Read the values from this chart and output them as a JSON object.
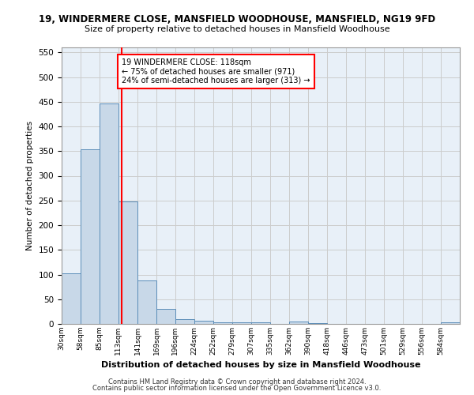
{
  "title1": "19, WINDERMERE CLOSE, MANSFIELD WOODHOUSE, MANSFIELD, NG19 9FD",
  "title2": "Size of property relative to detached houses in Mansfield Woodhouse",
  "xlabel": "Distribution of detached houses by size in Mansfield Woodhouse",
  "ylabel": "Number of detached properties",
  "bin_labels": [
    "30sqm",
    "58sqm",
    "85sqm",
    "113sqm",
    "141sqm",
    "169sqm",
    "196sqm",
    "224sqm",
    "252sqm",
    "279sqm",
    "307sqm",
    "335sqm",
    "362sqm",
    "390sqm",
    "418sqm",
    "446sqm",
    "473sqm",
    "501sqm",
    "529sqm",
    "556sqm",
    "584sqm"
  ],
  "bin_edges": [
    30,
    58,
    85,
    113,
    141,
    169,
    196,
    224,
    252,
    279,
    307,
    335,
    362,
    390,
    418,
    446,
    473,
    501,
    529,
    556,
    584,
    612
  ],
  "bar_values": [
    103,
    354,
    447,
    248,
    88,
    31,
    10,
    7,
    4,
    4,
    4,
    0,
    5,
    2,
    0,
    0,
    0,
    0,
    0,
    0,
    4
  ],
  "bar_color": "#c8d8e8",
  "bar_edge_color": "#5b8db8",
  "grid_color": "#cccccc",
  "bg_color": "#e8f0f8",
  "vline_x": 118,
  "vline_color": "red",
  "annotation_text": "19 WINDERMERE CLOSE: 118sqm\n← 75% of detached houses are smaller (971)\n24% of semi-detached houses are larger (313) →",
  "annotation_box_color": "white",
  "annotation_box_edge": "red",
  "ylim": [
    0,
    560
  ],
  "yticks": [
    0,
    50,
    100,
    150,
    200,
    250,
    300,
    350,
    400,
    450,
    500,
    550
  ],
  "footer1": "Contains HM Land Registry data © Crown copyright and database right 2024.",
  "footer2": "Contains public sector information licensed under the Open Government Licence v3.0."
}
